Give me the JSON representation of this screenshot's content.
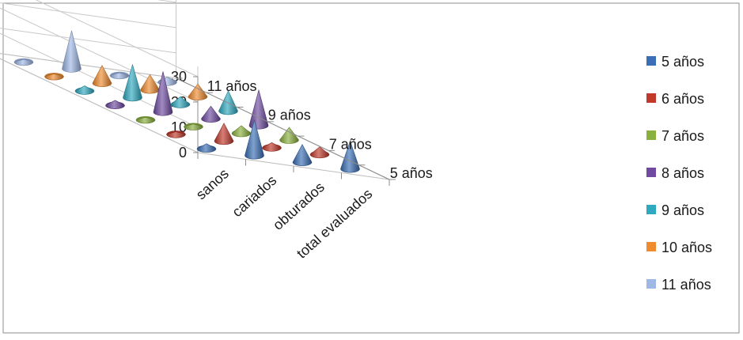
{
  "chart_data": {
    "type": "3d-cone",
    "categories": [
      "sanos",
      "cariados",
      "obturados",
      "total evaluados"
    ],
    "z_tick_labels": [
      "5  años",
      "7 años",
      "9 años",
      "11 años"
    ],
    "y_ticks": [
      0,
      10,
      20,
      30
    ],
    "ylim": [
      0,
      30
    ],
    "legend_position": "right",
    "series": [
      {
        "name": "5  años",
        "color": "#3a6fb5",
        "values": [
          2,
          14,
          7,
          11
        ]
      },
      {
        "name": "6 años",
        "color": "#c0392b",
        "values": [
          1,
          7,
          2,
          3
        ]
      },
      {
        "name": "7 años",
        "color": "#8ab03e",
        "values": [
          1,
          1,
          3,
          5
        ]
      },
      {
        "name": "8 años",
        "color": "#6f4aa0",
        "values": [
          2,
          16,
          5,
          14
        ]
      },
      {
        "name": "9 años",
        "color": "#2fa9c0",
        "values": [
          2,
          13,
          3,
          8
        ]
      },
      {
        "name": "10 años",
        "color": "#f08b2e",
        "values": [
          1,
          7,
          6,
          5
        ]
      },
      {
        "name": "11 años",
        "color": "#9fb8e6",
        "values": [
          1,
          15,
          1,
          2
        ]
      }
    ]
  }
}
